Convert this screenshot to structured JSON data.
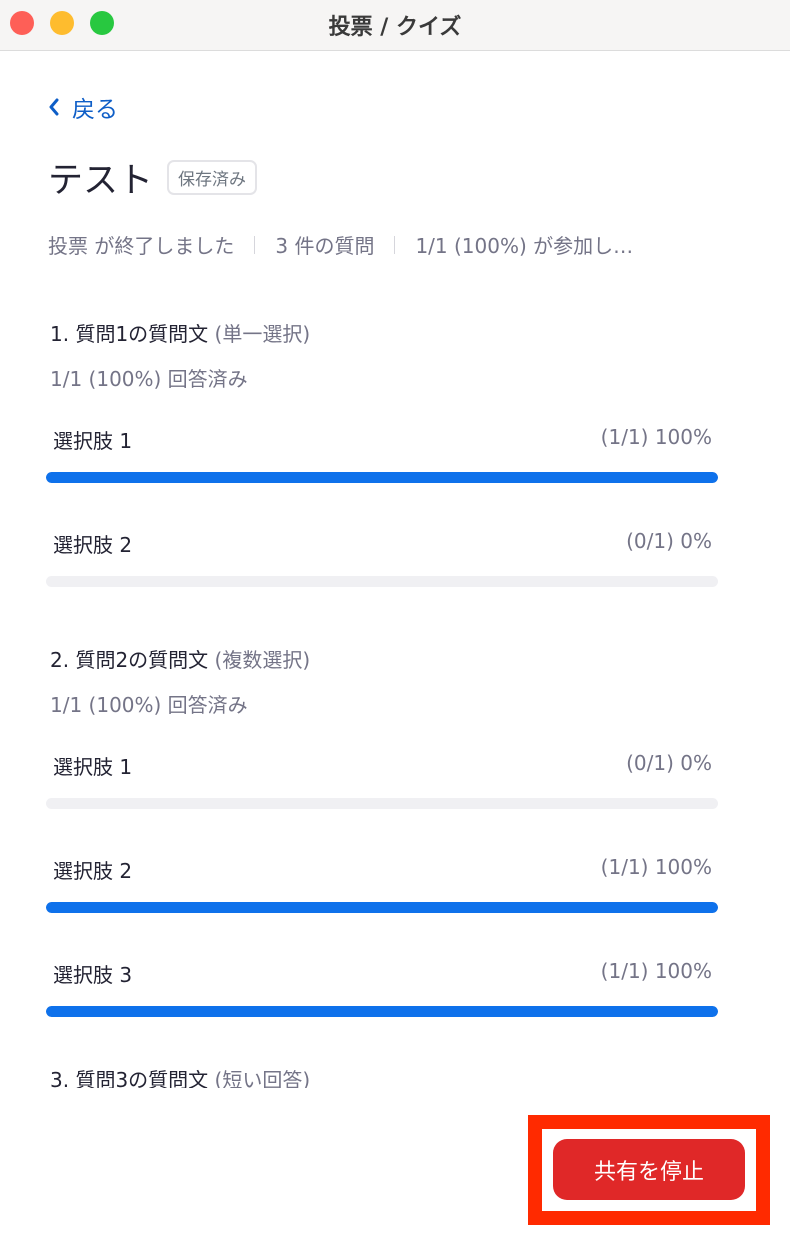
{
  "window": {
    "title": "投票 / クイズ"
  },
  "nav": {
    "back_label": "戻る"
  },
  "poll": {
    "title": "テスト",
    "badge": "保存済み",
    "meta": [
      "投票 が終了しました",
      "3 件の質問",
      "1/1 (100%) が参加し…"
    ]
  },
  "questions": [
    {
      "title": "1. 質問1の質問文",
      "type": "(単一選択)",
      "answered": "1/1 (100%) 回答済み",
      "options": [
        {
          "label": "選択肢 1",
          "result": "(1/1) 100%",
          "percent": 100
        },
        {
          "label": "選択肢 2",
          "result": "(0/1) 0%",
          "percent": 0
        }
      ]
    },
    {
      "title": "2. 質問2の質問文",
      "type": "(複数選択)",
      "answered": "1/1 (100%) 回答済み",
      "options": [
        {
          "label": "選択肢 1",
          "result": "(0/1) 0%",
          "percent": 0
        },
        {
          "label": "選択肢 2",
          "result": "(1/1) 100%",
          "percent": 100
        },
        {
          "label": "選択肢 3",
          "result": "(1/1) 100%",
          "percent": 100
        }
      ]
    },
    {
      "title": "3. 質問3の質問文",
      "type": "(短い回答)"
    }
  ],
  "footer": {
    "stop_share_label": "共有を停止"
  },
  "colors": {
    "accent": "#0e71eb",
    "danger": "#e02828",
    "highlight": "#ff2a00"
  }
}
